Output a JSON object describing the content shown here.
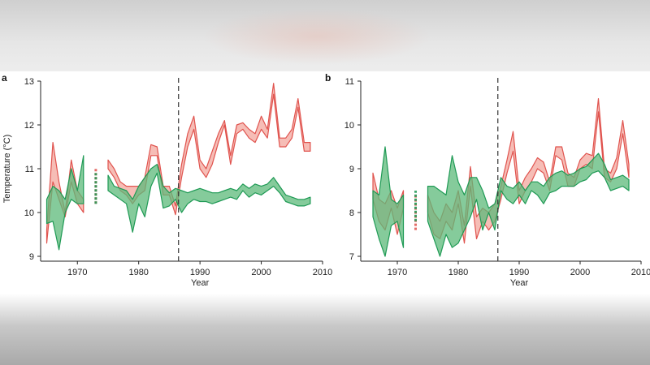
{
  "colors": {
    "red": "#e0534e",
    "red_fill": "#f3a79d",
    "green": "#1f9a55",
    "green_fill": "#5cb97a",
    "dash": "#333333"
  },
  "chart_data": [
    {
      "type": "area",
      "panel": "a",
      "xlabel": "Year",
      "ylabel": "Temperature (°C)",
      "xlim": [
        1964,
        2010
      ],
      "ylim": [
        9,
        13
      ],
      "xticks": [
        1970,
        1980,
        1990,
        2000,
        2010
      ],
      "yticks": [
        9,
        10,
        11,
        12,
        13
      ],
      "vline": 1986.5,
      "series": [
        {
          "color": "red",
          "segments": [
            {
              "x": [
                1965,
                1966,
                1967,
                1968,
                1969,
                1970,
                1971
              ],
              "low": [
                9.3,
                10.7,
                10.3,
                9.9,
                10.7,
                10.2,
                10.0
              ],
              "high": [
                9.6,
                11.6,
                10.7,
                10.0,
                11.2,
                10.5,
                10.3
              ]
            },
            {
              "x": [
                1973
              ],
              "low": [
                10.2
              ],
              "high": [
                11.0
              ]
            },
            {
              "x": [
                1975,
                1976,
                1977,
                1978,
                1979,
                1980,
                1981,
                1982,
                1983,
                1984,
                1985,
                1986,
                1987,
                1988,
                1989,
                1990,
                1991,
                1992,
                1993,
                1994,
                1995,
                1996,
                1997,
                1998,
                1999,
                2000,
                2001,
                2002,
                2003,
                2004,
                2005,
                2006,
                2007,
                2008
              ],
              "low": [
                11.0,
                10.8,
                10.5,
                10.4,
                10.2,
                10.4,
                10.5,
                11.3,
                11.3,
                10.4,
                10.4,
                9.95,
                10.8,
                11.5,
                11.9,
                11.0,
                10.8,
                11.1,
                11.6,
                12.0,
                11.1,
                11.8,
                11.9,
                11.7,
                11.6,
                11.9,
                11.7,
                12.7,
                11.5,
                11.5,
                11.7,
                12.4,
                11.4,
                11.4
              ],
              "high": [
                11.2,
                11.0,
                10.7,
                10.6,
                10.6,
                10.6,
                10.8,
                11.55,
                11.5,
                10.6,
                10.6,
                10.15,
                11.1,
                11.8,
                12.2,
                11.2,
                11.0,
                11.4,
                11.8,
                12.1,
                11.3,
                12.0,
                12.05,
                11.9,
                11.8,
                12.2,
                11.9,
                12.95,
                11.7,
                11.7,
                11.9,
                12.6,
                11.6,
                11.6
              ]
            }
          ]
        },
        {
          "color": "green",
          "segments": [
            {
              "x": [
                1965,
                1966,
                1967,
                1968,
                1969,
                1970,
                1971
              ],
              "low": [
                9.75,
                9.8,
                9.15,
                10.0,
                10.3,
                10.2,
                10.2
              ],
              "high": [
                10.3,
                10.6,
                10.5,
                10.3,
                11.0,
                10.5,
                11.3
              ]
            },
            {
              "x": [
                1973
              ],
              "low": [
                10.2
              ],
              "high": [
                10.9
              ]
            },
            {
              "x": [
                1975,
                1976,
                1977,
                1978,
                1979,
                1980,
                1981,
                1982,
                1983,
                1984,
                1985,
                1986,
                1987,
                1988,
                1989,
                1990,
                1991,
                1992,
                1993,
                1994,
                1995,
                1996,
                1997,
                1998,
                1999,
                2000,
                2001,
                2002,
                2003,
                2004,
                2005,
                2006,
                2007,
                2008
              ],
              "low": [
                10.5,
                10.4,
                10.3,
                10.2,
                9.55,
                10.2,
                9.9,
                10.6,
                10.9,
                10.1,
                10.15,
                10.3,
                10.0,
                10.2,
                10.3,
                10.25,
                10.25,
                10.2,
                10.25,
                10.3,
                10.35,
                10.3,
                10.5,
                10.35,
                10.45,
                10.4,
                10.5,
                10.6,
                10.45,
                10.25,
                10.2,
                10.15,
                10.15,
                10.2
              ],
              "high": [
                10.85,
                10.6,
                10.55,
                10.5,
                10.3,
                10.6,
                10.8,
                11.0,
                11.1,
                10.6,
                10.45,
                10.55,
                10.5,
                10.45,
                10.5,
                10.55,
                10.5,
                10.45,
                10.45,
                10.5,
                10.55,
                10.5,
                10.65,
                10.55,
                10.65,
                10.6,
                10.65,
                10.8,
                10.6,
                10.4,
                10.35,
                10.3,
                10.3,
                10.35
              ]
            }
          ]
        }
      ]
    },
    {
      "type": "area",
      "panel": "b",
      "xlabel": "Year",
      "ylabel": "",
      "xlim": [
        1964,
        2010
      ],
      "ylim": [
        7,
        11
      ],
      "xticks": [
        1970,
        1980,
        1990,
        2000,
        2010
      ],
      "yticks": [
        7,
        8,
        9,
        10,
        11
      ],
      "vline": 1986.5,
      "series": [
        {
          "color": "red",
          "segments": [
            {
              "x": [
                1966,
                1967,
                1968,
                1969,
                1970,
                1971
              ],
              "low": [
                8.3,
                7.8,
                7.6,
                8.1,
                7.5,
                8.1
              ],
              "high": [
                8.9,
                8.3,
                8.2,
                8.5,
                8.1,
                8.5
              ]
            },
            {
              "x": [
                1973
              ],
              "low": [
                7.6
              ],
              "high": [
                8.4
              ]
            },
            {
              "x": [
                1975,
                1976,
                1977,
                1978,
                1979,
                1980,
                1981,
                1982,
                1983,
                1984,
                1985,
                1986,
                1987,
                1988,
                1989,
                1990,
                1991,
                1992,
                1993,
                1994,
                1995,
                1996,
                1997,
                1998,
                1999,
                2000,
                2001,
                2002,
                2003,
                2004,
                2005,
                2006,
                2007,
                2008
              ],
              "low": [
                8.0,
                7.5,
                7.4,
                7.8,
                7.6,
                8.2,
                7.3,
                8.6,
                7.4,
                7.8,
                7.6,
                7.8,
                8.3,
                8.9,
                9.4,
                8.2,
                8.5,
                8.7,
                9.0,
                8.9,
                8.5,
                9.3,
                9.2,
                8.6,
                8.6,
                9.0,
                9.1,
                9.0,
                10.3,
                8.8,
                8.7,
                9.0,
                9.8,
                8.8
              ],
              "high": [
                8.4,
                8.0,
                7.8,
                8.2,
                8.0,
                8.5,
                7.7,
                9.05,
                7.9,
                8.1,
                8.0,
                8.2,
                8.6,
                9.2,
                9.85,
                8.5,
                8.8,
                9.0,
                9.25,
                9.15,
                8.7,
                9.5,
                9.5,
                8.9,
                8.8,
                9.2,
                9.35,
                9.3,
                10.6,
                9.0,
                8.9,
                9.25,
                10.1,
                9.1
              ]
            }
          ]
        },
        {
          "color": "green",
          "segments": [
            {
              "x": [
                1966,
                1967,
                1968,
                1969,
                1970,
                1971
              ],
              "low": [
                7.9,
                7.4,
                7.0,
                7.7,
                7.8,
                7.2
              ],
              "high": [
                8.5,
                8.4,
                9.5,
                8.3,
                8.2,
                8.4
              ]
            },
            {
              "x": [
                1973
              ],
              "low": [
                7.8
              ],
              "high": [
                8.5
              ]
            },
            {
              "x": [
                1975,
                1976,
                1977,
                1978,
                1979,
                1980,
                1981,
                1982,
                1983,
                1984,
                1985,
                1986,
                1987,
                1988,
                1989,
                1990,
                1991,
                1992,
                1993,
                1994,
                1995,
                1996,
                1997,
                1998,
                1999,
                2000,
                2001,
                2002,
                2003,
                2004,
                2005,
                2006,
                2007,
                2008
              ],
              "low": [
                7.8,
                7.4,
                7.0,
                7.5,
                7.2,
                7.3,
                7.6,
                7.9,
                8.3,
                7.6,
                8.0,
                7.6,
                8.5,
                8.3,
                8.2,
                8.4,
                8.2,
                8.5,
                8.4,
                8.2,
                8.45,
                8.5,
                8.6,
                8.6,
                8.6,
                8.7,
                8.75,
                8.9,
                8.95,
                8.8,
                8.5,
                8.55,
                8.6,
                8.5
              ],
              "high": [
                8.6,
                8.6,
                8.5,
                8.4,
                9.3,
                8.7,
                8.4,
                8.8,
                8.8,
                8.5,
                8.1,
                8.2,
                8.8,
                8.6,
                8.55,
                8.7,
                8.5,
                8.7,
                8.7,
                8.6,
                8.8,
                8.9,
                8.95,
                8.85,
                8.9,
                9.0,
                9.05,
                9.2,
                9.35,
                9.1,
                8.75,
                8.8,
                8.85,
                8.75
              ]
            }
          ]
        }
      ]
    }
  ]
}
